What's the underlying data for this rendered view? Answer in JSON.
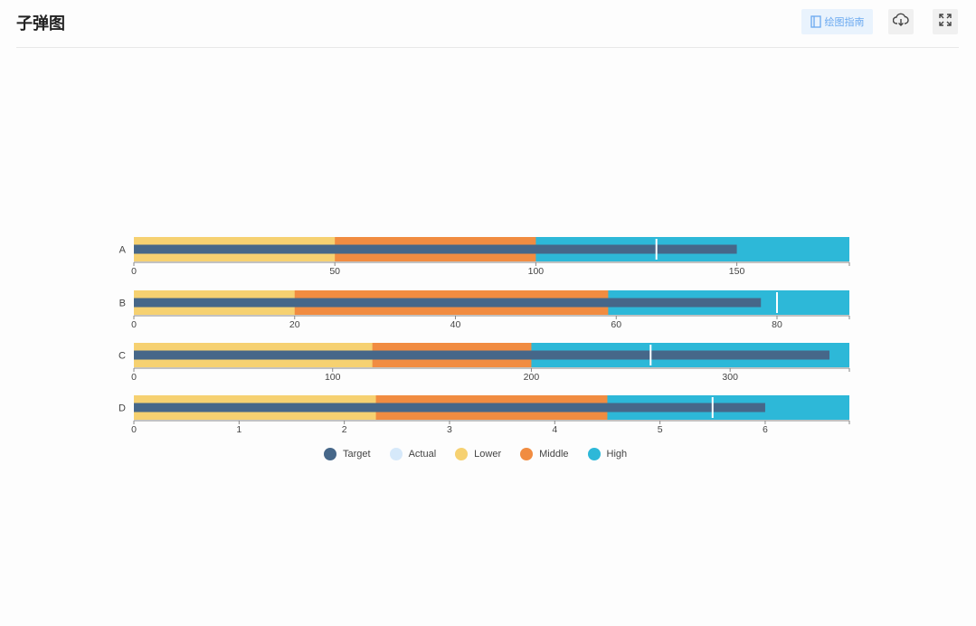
{
  "header": {
    "title": "子弹图",
    "guide_label": "绘图指南"
  },
  "icons": {
    "guide": "book-icon",
    "download": "cloud-download-icon",
    "fullscreen": "expand-icon"
  },
  "colors": {
    "target": "#466789",
    "actual": "#d6e9fa",
    "lower": "#f6d171",
    "middle": "#f18c41",
    "high": "#2db8d8",
    "marker": "#ffffff"
  },
  "legend": [
    "Target",
    "Actual",
    "Lower",
    "Middle",
    "High"
  ],
  "chart_data": {
    "type": "bullet",
    "title": "子弹图",
    "legend_position": "bottom-center",
    "rows": [
      {
        "label": "A",
        "xlim": [
          0,
          178
        ],
        "ticks": [
          0,
          50,
          100,
          150
        ],
        "lower": 50,
        "middle": 100,
        "high": 178,
        "bar": 150,
        "marker": 130
      },
      {
        "label": "B",
        "xlim": [
          0,
          89
        ],
        "ticks": [
          0,
          20,
          40,
          60,
          80
        ],
        "lower": 20,
        "middle": 59,
        "high": 89,
        "bar": 78,
        "marker": 80
      },
      {
        "label": "C",
        "xlim": [
          0,
          360
        ],
        "ticks": [
          0,
          100,
          200,
          300
        ],
        "lower": 120,
        "middle": 200,
        "high": 360,
        "bar": 350,
        "marker": 260
      },
      {
        "label": "D",
        "xlim": [
          0,
          6.8
        ],
        "ticks": [
          0,
          1,
          2,
          3,
          4,
          5,
          6
        ],
        "lower": 2.3,
        "middle": 4.5,
        "high": 6.8,
        "bar": 6,
        "marker": 5.5
      }
    ]
  }
}
